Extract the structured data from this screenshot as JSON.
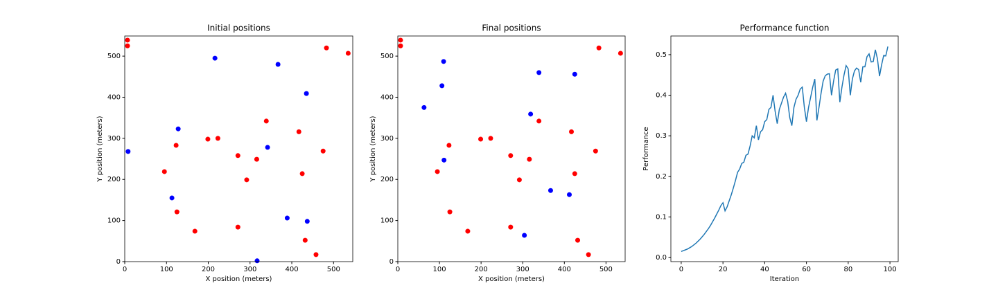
{
  "chart_data": [
    {
      "type": "scatter",
      "title": "Initial positions",
      "xlabel": "X position (meters)",
      "ylabel": "Y position (meters)",
      "xlim": [
        0,
        546
      ],
      "ylim": [
        0,
        549
      ],
      "xticks": [
        0,
        100,
        200,
        300,
        400,
        500
      ],
      "yticks": [
        0,
        100,
        200,
        300,
        400,
        500
      ],
      "series": [
        {
          "color": "red",
          "x": [
            6.6,
            6.6,
            483,
            535,
            339,
            417,
            199,
            223,
            123,
            475,
            271,
            316,
            95,
            425,
            292,
            125,
            168,
            271,
            432,
            458
          ],
          "values": [
            539,
            525,
            520,
            507,
            342,
            316,
            298,
            300,
            283,
            269,
            258,
            249,
            219,
            214,
            199,
            121,
            74,
            84,
            52,
            17
          ]
        },
        {
          "color": "blue",
          "x": [
            216,
            367,
            435,
            128,
            342,
            8,
            113,
            389,
            437,
            317
          ],
          "values": [
            495,
            480,
            409,
            323,
            278,
            268,
            155,
            106,
            98,
            2
          ]
        }
      ]
    },
    {
      "type": "scatter",
      "title": "Final positions",
      "xlabel": "X position (meters)",
      "ylabel": "Y position (meters)",
      "xlim": [
        0,
        546
      ],
      "ylim": [
        0,
        549
      ],
      "xticks": [
        0,
        100,
        200,
        300,
        400,
        500
      ],
      "yticks": [
        0,
        100,
        200,
        300,
        400,
        500
      ],
      "series": [
        {
          "color": "red",
          "x": [
            6.6,
            6.6,
            483,
            535,
            339,
            417,
            199,
            223,
            123,
            475,
            271,
            316,
            95,
            425,
            292,
            125,
            168,
            271,
            432,
            458
          ],
          "values": [
            539,
            525,
            520,
            507,
            342,
            316,
            298,
            300,
            283,
            269,
            258,
            249,
            219,
            214,
            199,
            121,
            74,
            84,
            52,
            17
          ]
        },
        {
          "color": "blue",
          "x": [
            110,
            106,
            63,
            339,
            425,
            319,
            111,
            367,
            412,
            304
          ],
          "values": [
            487,
            428,
            375,
            460,
            456,
            359,
            247,
            173,
            163,
            64
          ]
        }
      ]
    },
    {
      "type": "line",
      "title": "Performance function",
      "xlabel": "Iteration",
      "ylabel": "Performance",
      "xlim": [
        -4.95,
        103.95
      ],
      "ylim": [
        -0.01,
        0.546
      ],
      "xticks": [
        0,
        20,
        40,
        60,
        80,
        100
      ],
      "yticks": [
        {
          "value": 0,
          "label": "0.0"
        },
        0.1,
        0.2,
        0.3,
        0.4,
        0.5
      ],
      "series": [
        {
          "color": "#1f77b4",
          "x": [
            0,
            1,
            2,
            3,
            4,
            5,
            6,
            7,
            8,
            9,
            10,
            11,
            12,
            13,
            14,
            15,
            16,
            17,
            18,
            19,
            20,
            21,
            22,
            23,
            24,
            25,
            26,
            27,
            28,
            29,
            30,
            31,
            32,
            33,
            34,
            35,
            36,
            37,
            38,
            39,
            40,
            41,
            42,
            43,
            44,
            45,
            46,
            47,
            48,
            49,
            50,
            51,
            52,
            53,
            54,
            55,
            56,
            57,
            58,
            59,
            60,
            61,
            62,
            63,
            64,
            65,
            66,
            67,
            68,
            69,
            70,
            71,
            72,
            73,
            74,
            75,
            76,
            77,
            78,
            79,
            80,
            81,
            82,
            83,
            84,
            85,
            86,
            87,
            88,
            89,
            90,
            91,
            92,
            93,
            94,
            95,
            96,
            97,
            98,
            99
          ],
          "values": [
            0.015,
            0.017,
            0.019,
            0.021,
            0.024,
            0.027,
            0.031,
            0.035,
            0.04,
            0.045,
            0.051,
            0.057,
            0.064,
            0.071,
            0.079,
            0.088,
            0.097,
            0.107,
            0.117,
            0.128,
            0.135,
            0.115,
            0.125,
            0.14,
            0.155,
            0.172,
            0.19,
            0.21,
            0.218,
            0.232,
            0.235,
            0.252,
            0.255,
            0.275,
            0.3,
            0.295,
            0.325,
            0.29,
            0.31,
            0.315,
            0.335,
            0.34,
            0.365,
            0.37,
            0.4,
            0.36,
            0.33,
            0.365,
            0.38,
            0.395,
            0.405,
            0.385,
            0.345,
            0.325,
            0.37,
            0.39,
            0.4,
            0.415,
            0.42,
            0.37,
            0.335,
            0.37,
            0.395,
            0.42,
            0.44,
            0.338,
            0.37,
            0.405,
            0.435,
            0.448,
            0.452,
            0.453,
            0.4,
            0.435,
            0.462,
            0.465,
            0.383,
            0.42,
            0.45,
            0.473,
            0.465,
            0.4,
            0.44,
            0.46,
            0.467,
            0.463,
            0.432,
            0.47,
            0.47,
            0.495,
            0.502,
            0.482,
            0.483,
            0.512,
            0.49,
            0.447,
            0.475,
            0.498,
            0.497,
            0.52
          ]
        }
      ]
    }
  ]
}
